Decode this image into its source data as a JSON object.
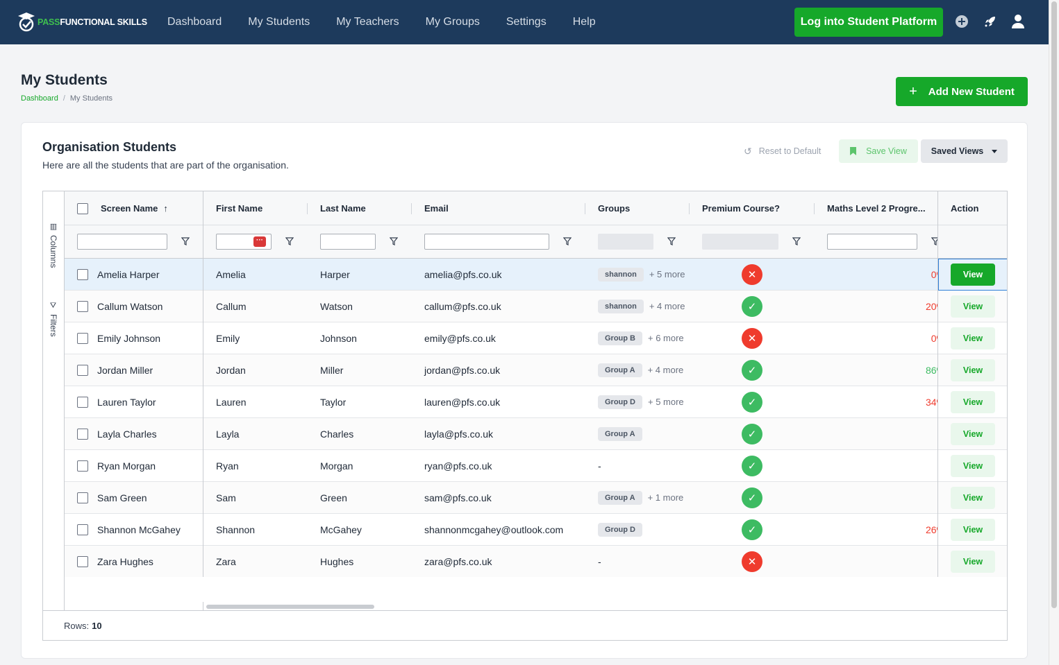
{
  "nav": {
    "logo_pass": "PASS",
    "logo_rest": "FUNCTIONAL SKILLS",
    "items": [
      "Dashboard",
      "My Students",
      "My Teachers",
      "My Groups",
      "Settings",
      "Help"
    ],
    "login_label": "Log into Student Platform"
  },
  "page": {
    "title": "My Students",
    "breadcrumb_home": "Dashboard",
    "breadcrumb_current": "My Students",
    "add_label": "Add New Student"
  },
  "card": {
    "title": "Organisation Students",
    "subtitle": "Here are all the students that are part of the organisation.",
    "reset_label": "Reset to Default",
    "save_view_label": "Save View",
    "saved_views_label": "Saved Views"
  },
  "grid": {
    "side_columns": "Columns",
    "side_filters": "Filters",
    "headers": {
      "screen_name": "Screen Name",
      "first_name": "First Name",
      "last_name": "Last Name",
      "email": "Email",
      "groups": "Groups",
      "premium": "Premium Course?",
      "maths": "Maths Level 2 Progre...",
      "action": "Action"
    },
    "rows": [
      {
        "screen": "Amelia Harper",
        "first": "Amelia",
        "last": "Harper",
        "email": "amelia@pfs.co.uk",
        "group": "shannon",
        "more": "+ 5 more",
        "premium": false,
        "maths": "0%"
      },
      {
        "screen": "Callum Watson",
        "first": "Callum",
        "last": "Watson",
        "email": "callum@pfs.co.uk",
        "group": "shannon",
        "more": "+ 4 more",
        "premium": true,
        "maths": "20%"
      },
      {
        "screen": "Emily Johnson",
        "first": "Emily",
        "last": "Johnson",
        "email": "emily@pfs.co.uk",
        "group": "Group B",
        "more": "+ 6 more",
        "premium": false,
        "maths": "0%"
      },
      {
        "screen": "Jordan Miller",
        "first": "Jordan",
        "last": "Miller",
        "email": "jordan@pfs.co.uk",
        "group": "Group A",
        "more": "+ 4 more",
        "premium": true,
        "maths": "86%"
      },
      {
        "screen": "Lauren Taylor",
        "first": "Lauren",
        "last": "Taylor",
        "email": "lauren@pfs.co.uk",
        "group": "Group D",
        "more": "+ 5 more",
        "premium": true,
        "maths": "34%"
      },
      {
        "screen": "Layla Charles",
        "first": "Layla",
        "last": "Charles",
        "email": "layla@pfs.co.uk",
        "group": "Group A",
        "more": "",
        "premium": true,
        "maths": "-"
      },
      {
        "screen": "Ryan Morgan",
        "first": "Ryan",
        "last": "Morgan",
        "email": "ryan@pfs.co.uk",
        "group": "",
        "more": "",
        "premium": true,
        "maths": "-"
      },
      {
        "screen": "Sam Green",
        "first": "Sam",
        "last": "Green",
        "email": "sam@pfs.co.uk",
        "group": "Group A",
        "more": "+ 1 more",
        "premium": true,
        "maths": "-"
      },
      {
        "screen": "Shannon McGahey",
        "first": "Shannon",
        "last": "McGahey",
        "email": "shannonmcgahey@outlook.com",
        "group": "Group D",
        "more": "",
        "premium": true,
        "maths": "26%"
      },
      {
        "screen": "Zara Hughes",
        "first": "Zara",
        "last": "Hughes",
        "email": "zara@pfs.co.uk",
        "group": "",
        "more": "",
        "premium": false,
        "maths": "-"
      }
    ],
    "view_label": "View",
    "empty_group": "-",
    "rows_label": "Rows:",
    "rows_count": "10"
  },
  "colors": {
    "brand_green": "#16a82a",
    "nav_bg": "#1d3a5c",
    "danger": "#ef3b2d",
    "success": "#3dbb62"
  }
}
